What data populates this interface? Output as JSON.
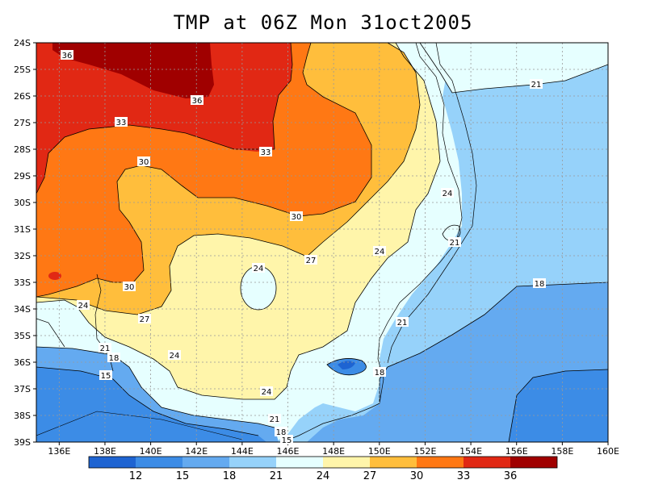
{
  "title": "TMP at 06Z Mon 31oct2005",
  "lat_labels": [
    "24S",
    "25S",
    "26S",
    "27S",
    "28S",
    "29S",
    "30S",
    "31S",
    "32S",
    "33S",
    "34S",
    "35S",
    "36S",
    "37S",
    "38S",
    "39S"
  ],
  "lon_labels": [
    "136E",
    "138E",
    "140E",
    "142E",
    "144E",
    "146E",
    "148E",
    "150E",
    "152E",
    "154E",
    "156E",
    "158E",
    "160E"
  ],
  "colorbar": {
    "ticks": [
      "12",
      "15",
      "18",
      "21",
      "24",
      "27",
      "30",
      "33",
      "36"
    ],
    "colors": [
      "#1e64d2",
      "#3c8ce6",
      "#64aaf0",
      "#96d2fa",
      "#e6ffff",
      "#fff5aa",
      "#ffbe3c",
      "#ff7814",
      "#e12814",
      "#a00000"
    ]
  },
  "contour_labels": [
    {
      "text": "36"
    },
    {
      "text": "36"
    },
    {
      "text": "33"
    },
    {
      "text": "33"
    },
    {
      "text": "30"
    },
    {
      "text": "30"
    },
    {
      "text": "30"
    },
    {
      "text": "27"
    },
    {
      "text": "27"
    },
    {
      "text": "24"
    },
    {
      "text": "24"
    },
    {
      "text": "24"
    },
    {
      "text": "24"
    },
    {
      "text": "24"
    },
    {
      "text": "24"
    },
    {
      "text": "21"
    },
    {
      "text": "21"
    },
    {
      "text": "21"
    },
    {
      "text": "21"
    },
    {
      "text": "21"
    },
    {
      "text": "18"
    },
    {
      "text": "18"
    },
    {
      "text": "18"
    },
    {
      "text": "18"
    },
    {
      "text": "15"
    },
    {
      "text": "15"
    }
  ],
  "colors": {
    "frame": "#000000",
    "grid": "#999999"
  }
}
